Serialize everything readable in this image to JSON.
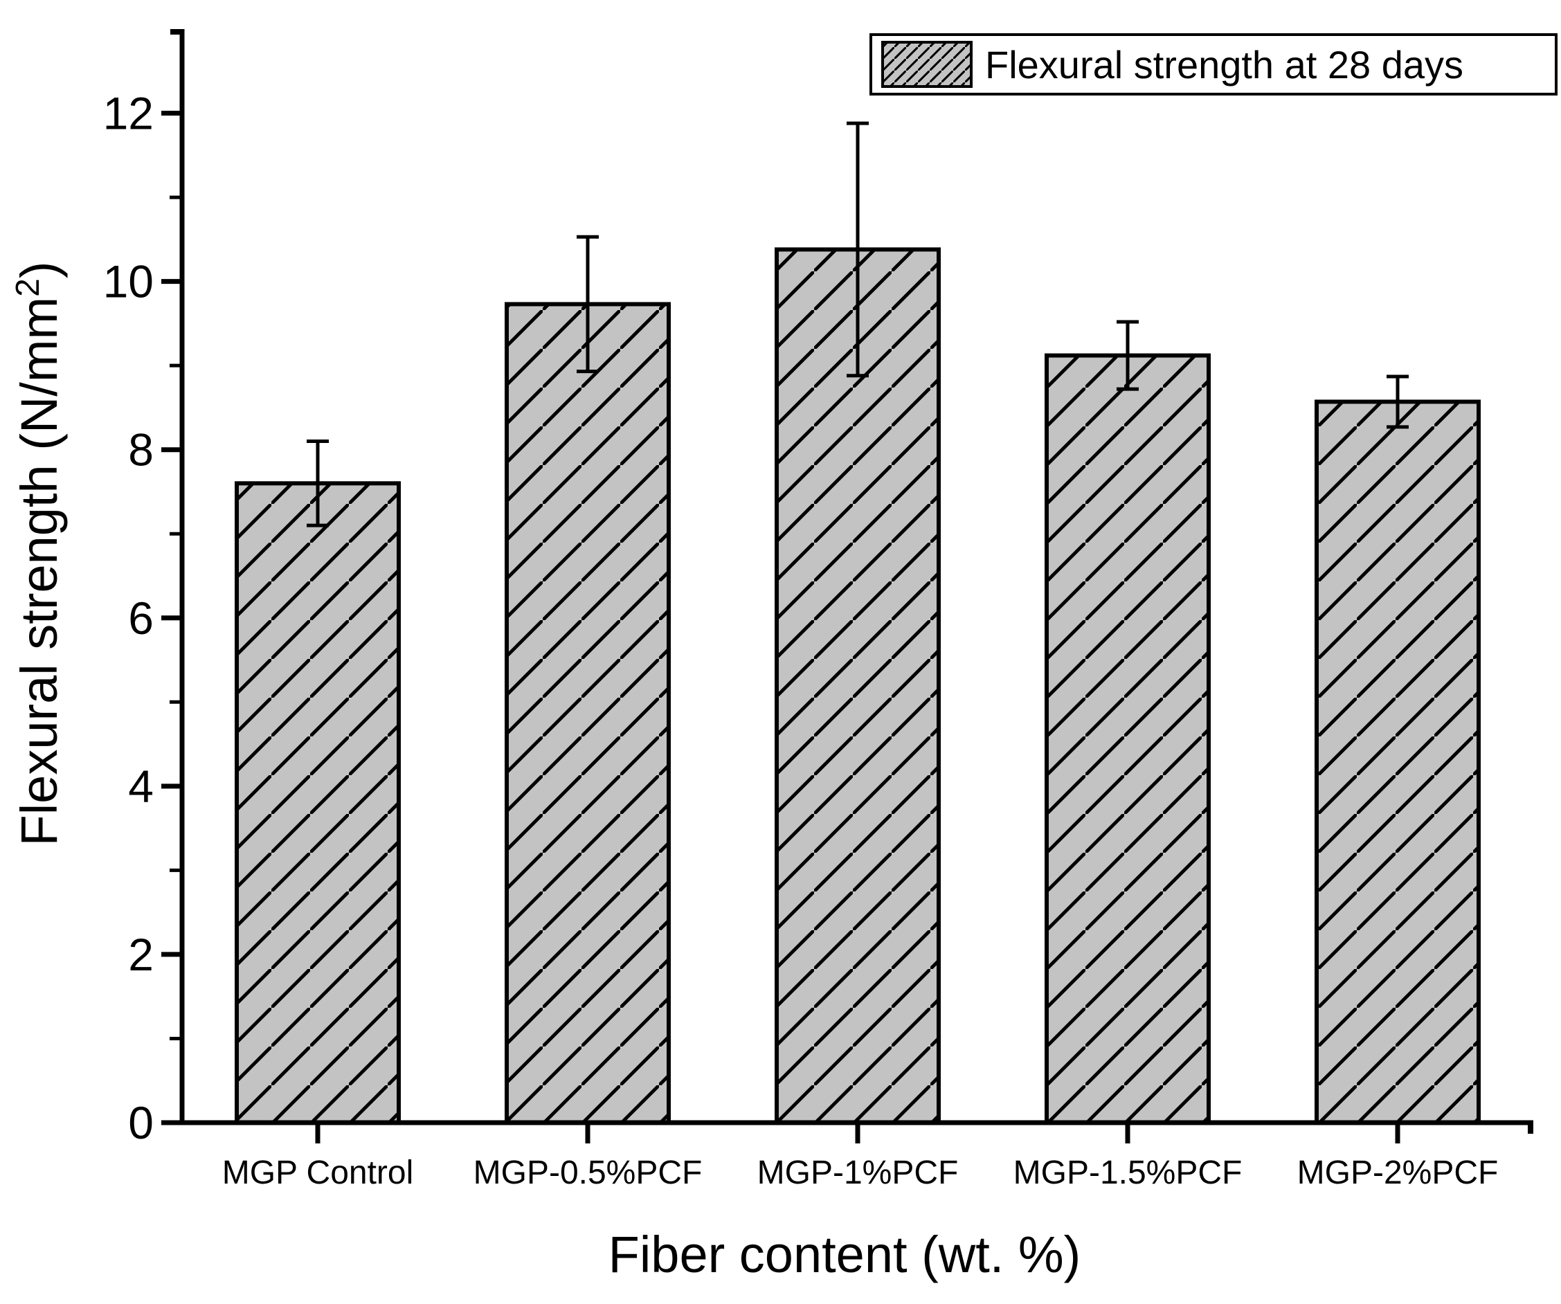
{
  "chart_data": {
    "type": "bar",
    "title": "",
    "xlabel": "Fiber content (wt. %)",
    "ylabel": "Flexural strength (N/mm²)",
    "ylabel_parts": {
      "prefix": "Flexural strength (N/mm",
      "superscript": "2",
      "suffix": ")"
    },
    "categories": [
      "MGP Control",
      "MGP-0.5%PCF",
      "MGP-1%PCF",
      "MGP-1.5%PCF",
      "MGP-2%PCF"
    ],
    "series": [
      {
        "name": "Flexural strength at 28 days",
        "values": [
          7.6,
          9.73,
          10.38,
          9.12,
          8.57
        ],
        "error_plus": [
          0.5,
          0.8,
          1.5,
          0.4,
          0.3
        ],
        "error_minus": [
          0.5,
          0.8,
          1.5,
          0.4,
          0.3
        ]
      }
    ],
    "ylim": [
      0,
      13
    ],
    "y_major_ticks": [
      0,
      2,
      4,
      6,
      8,
      10,
      12
    ],
    "y_minor_ticks": [
      1,
      3,
      5,
      7,
      9,
      11
    ],
    "grid": false,
    "legend": {
      "label": "Flexural strength at 28 days",
      "position": "top-right"
    },
    "colors": {
      "bar_fill": "#c3c3c3",
      "bar_edge": "#000000",
      "hatch_line": "#000000",
      "axis": "#000000",
      "background": "#ffffff"
    },
    "bar_hatch": "diagonal-forward"
  }
}
